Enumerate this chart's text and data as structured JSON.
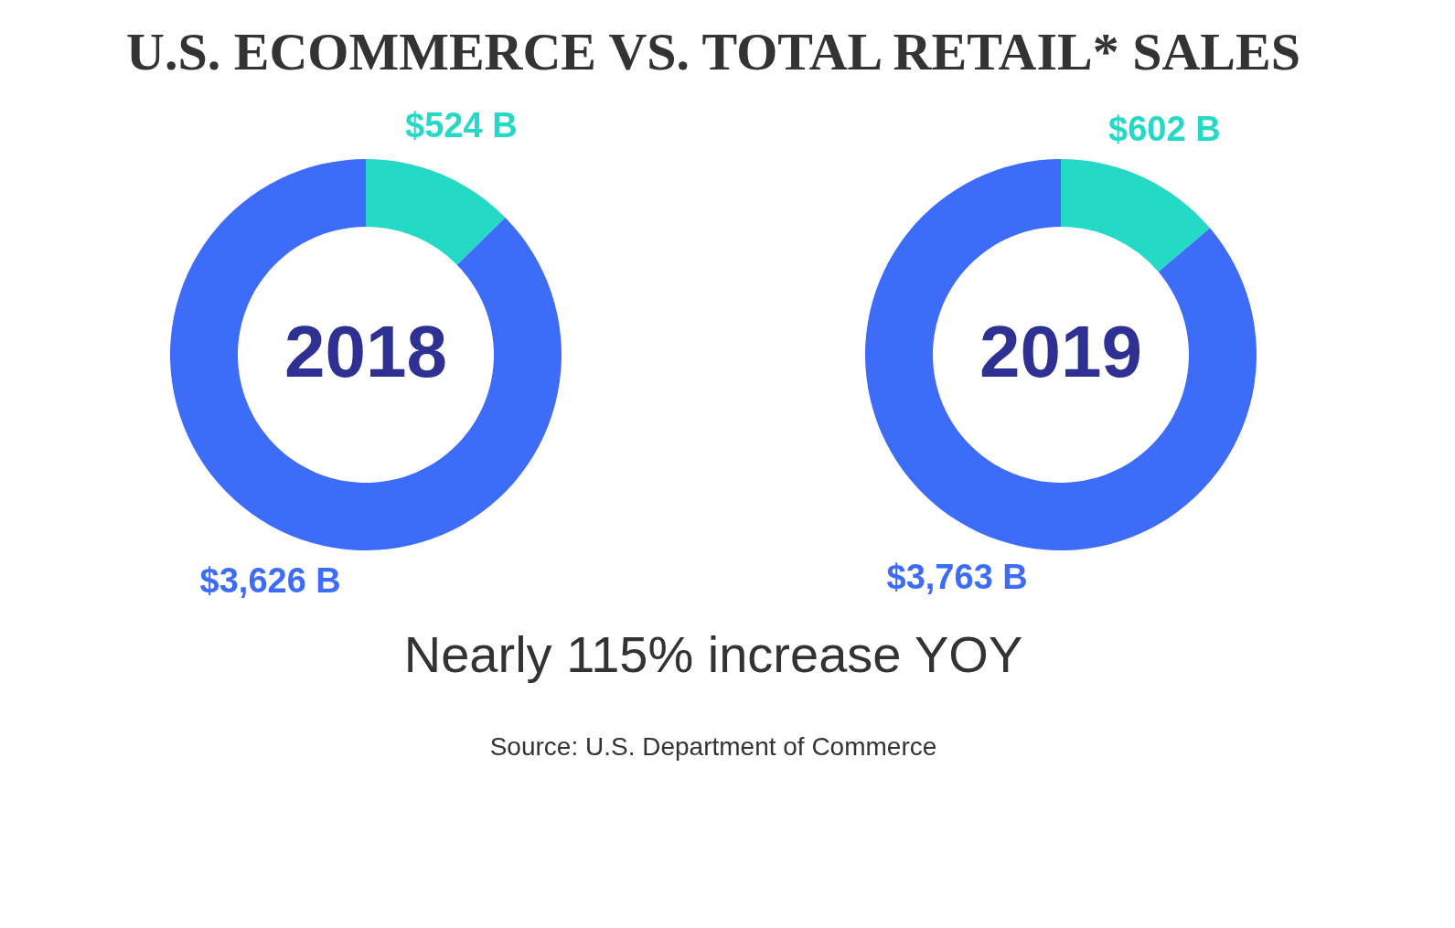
{
  "chart_data": [
    {
      "type": "other",
      "title": "U.S. ECOMMERCE VS. TOTAL RETAIL* SALES",
      "annotations": [
        "Nearly 115% increase YOY",
        "Source: U.S. Department of Commerce"
      ]
    },
    {
      "type": "donut",
      "title": "2018",
      "categories": [
        null,
        null
      ],
      "values": [
        524,
        3626
      ],
      "colors": [
        "#25d9c7",
        "#3d6cf9"
      ],
      "value_labels": [
        "$524 B",
        "$3,626 B"
      ]
    },
    {
      "type": "donut",
      "title": "2019",
      "categories": [
        null,
        null
      ],
      "values": [
        602,
        3763
      ],
      "colors": [
        "#25d9c7",
        "#3d6cf9"
      ],
      "value_labels": [
        "$602 B",
        "$3,763 B"
      ]
    }
  ]
}
